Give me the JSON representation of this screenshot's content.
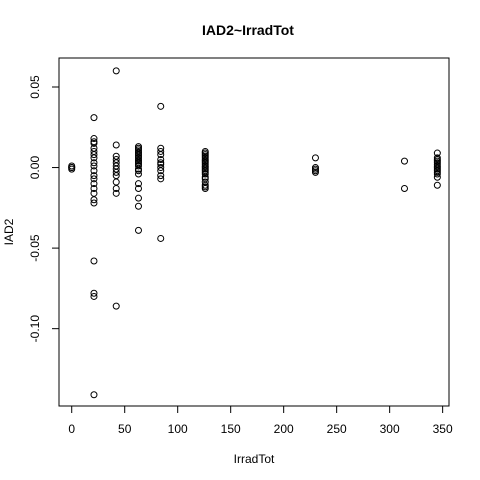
{
  "chart_data": {
    "type": "scatter",
    "title": "IAD2~IrradTot",
    "xlabel": "IrradTot",
    "ylabel": "IAD2",
    "xlim": [
      -12,
      356
    ],
    "ylim": [
      -0.148,
      0.068
    ],
    "xticks": [
      0,
      50,
      100,
      150,
      200,
      250,
      300,
      350
    ],
    "xtick_labels": [
      "0",
      "50",
      "100",
      "150",
      "200",
      "250",
      "300",
      "350"
    ],
    "yticks": [
      -0.1,
      -0.05,
      0.0,
      0.05
    ],
    "ytick_labels": [
      "-0.10",
      "-0.05",
      "0.00",
      "0.05"
    ],
    "grid": false,
    "marker": "open-circle",
    "points": [
      {
        "x": 0,
        "y": 0.001
      },
      {
        "x": 0,
        "y": 0.0
      },
      {
        "x": 0,
        "y": -0.001
      },
      {
        "x": 0,
        "y": 0.0
      },
      {
        "x": 21,
        "y": 0.031
      },
      {
        "x": 21,
        "y": 0.018
      },
      {
        "x": 21,
        "y": 0.016
      },
      {
        "x": 21,
        "y": 0.015
      },
      {
        "x": 21,
        "y": 0.012
      },
      {
        "x": 21,
        "y": 0.01
      },
      {
        "x": 21,
        "y": 0.008
      },
      {
        "x": 21,
        "y": 0.006
      },
      {
        "x": 21,
        "y": 0.003
      },
      {
        "x": 21,
        "y": 0.001
      },
      {
        "x": 21,
        "y": -0.002
      },
      {
        "x": 21,
        "y": -0.005
      },
      {
        "x": 21,
        "y": -0.007
      },
      {
        "x": 21,
        "y": -0.01
      },
      {
        "x": 21,
        "y": -0.013
      },
      {
        "x": 21,
        "y": -0.016
      },
      {
        "x": 21,
        "y": -0.02
      },
      {
        "x": 21,
        "y": -0.022
      },
      {
        "x": 21,
        "y": -0.058
      },
      {
        "x": 21,
        "y": -0.078
      },
      {
        "x": 21,
        "y": -0.08
      },
      {
        "x": 21,
        "y": -0.141
      },
      {
        "x": 42,
        "y": 0.06
      },
      {
        "x": 42,
        "y": 0.014
      },
      {
        "x": 42,
        "y": 0.007
      },
      {
        "x": 42,
        "y": 0.005
      },
      {
        "x": 42,
        "y": 0.003
      },
      {
        "x": 42,
        "y": 0.001
      },
      {
        "x": 42,
        "y": -0.001
      },
      {
        "x": 42,
        "y": -0.003
      },
      {
        "x": 42,
        "y": -0.005
      },
      {
        "x": 42,
        "y": -0.009
      },
      {
        "x": 42,
        "y": -0.013
      },
      {
        "x": 42,
        "y": -0.016
      },
      {
        "x": 42,
        "y": -0.086
      },
      {
        "x": 63,
        "y": 0.013
      },
      {
        "x": 63,
        "y": 0.012
      },
      {
        "x": 63,
        "y": 0.011
      },
      {
        "x": 63,
        "y": 0.01
      },
      {
        "x": 63,
        "y": 0.009
      },
      {
        "x": 63,
        "y": 0.008
      },
      {
        "x": 63,
        "y": 0.007
      },
      {
        "x": 63,
        "y": 0.006
      },
      {
        "x": 63,
        "y": 0.005
      },
      {
        "x": 63,
        "y": 0.004
      },
      {
        "x": 63,
        "y": 0.003
      },
      {
        "x": 63,
        "y": 0.002
      },
      {
        "x": 63,
        "y": 0.001
      },
      {
        "x": 63,
        "y": -0.001
      },
      {
        "x": 63,
        "y": -0.002
      },
      {
        "x": 63,
        "y": -0.004
      },
      {
        "x": 63,
        "y": -0.01
      },
      {
        "x": 63,
        "y": -0.013
      },
      {
        "x": 63,
        "y": -0.019
      },
      {
        "x": 63,
        "y": -0.024
      },
      {
        "x": 63,
        "y": -0.039
      },
      {
        "x": 84,
        "y": 0.038
      },
      {
        "x": 84,
        "y": 0.012
      },
      {
        "x": 84,
        "y": 0.01
      },
      {
        "x": 84,
        "y": 0.008
      },
      {
        "x": 84,
        "y": 0.005
      },
      {
        "x": 84,
        "y": 0.003
      },
      {
        "x": 84,
        "y": 0.002
      },
      {
        "x": 84,
        "y": 0.0
      },
      {
        "x": 84,
        "y": -0.002
      },
      {
        "x": 84,
        "y": -0.005
      },
      {
        "x": 84,
        "y": -0.007
      },
      {
        "x": 84,
        "y": -0.044
      },
      {
        "x": 126,
        "y": 0.01
      },
      {
        "x": 126,
        "y": 0.009
      },
      {
        "x": 126,
        "y": 0.008
      },
      {
        "x": 126,
        "y": 0.007
      },
      {
        "x": 126,
        "y": 0.006
      },
      {
        "x": 126,
        "y": 0.005
      },
      {
        "x": 126,
        "y": 0.004
      },
      {
        "x": 126,
        "y": 0.003
      },
      {
        "x": 126,
        "y": 0.002
      },
      {
        "x": 126,
        "y": 0.001
      },
      {
        "x": 126,
        "y": 0.0
      },
      {
        "x": 126,
        "y": -0.001
      },
      {
        "x": 126,
        "y": -0.002
      },
      {
        "x": 126,
        "y": -0.003
      },
      {
        "x": 126,
        "y": -0.004
      },
      {
        "x": 126,
        "y": -0.006
      },
      {
        "x": 126,
        "y": -0.007
      },
      {
        "x": 126,
        "y": -0.009
      },
      {
        "x": 126,
        "y": -0.011
      },
      {
        "x": 126,
        "y": -0.012
      },
      {
        "x": 126,
        "y": -0.013
      },
      {
        "x": 230,
        "y": 0.006
      },
      {
        "x": 230,
        "y": 0.0
      },
      {
        "x": 230,
        "y": -0.001
      },
      {
        "x": 230,
        "y": -0.002
      },
      {
        "x": 230,
        "y": -0.003
      },
      {
        "x": 314,
        "y": 0.004
      },
      {
        "x": 314,
        "y": -0.013
      },
      {
        "x": 345,
        "y": 0.009
      },
      {
        "x": 345,
        "y": 0.006
      },
      {
        "x": 345,
        "y": 0.005
      },
      {
        "x": 345,
        "y": 0.004
      },
      {
        "x": 345,
        "y": 0.003
      },
      {
        "x": 345,
        "y": 0.002
      },
      {
        "x": 345,
        "y": 0.001
      },
      {
        "x": 345,
        "y": 0.0
      },
      {
        "x": 345,
        "y": -0.001
      },
      {
        "x": 345,
        "y": -0.002
      },
      {
        "x": 345,
        "y": -0.003
      },
      {
        "x": 345,
        "y": -0.004
      },
      {
        "x": 345,
        "y": -0.006
      },
      {
        "x": 345,
        "y": -0.011
      }
    ]
  }
}
